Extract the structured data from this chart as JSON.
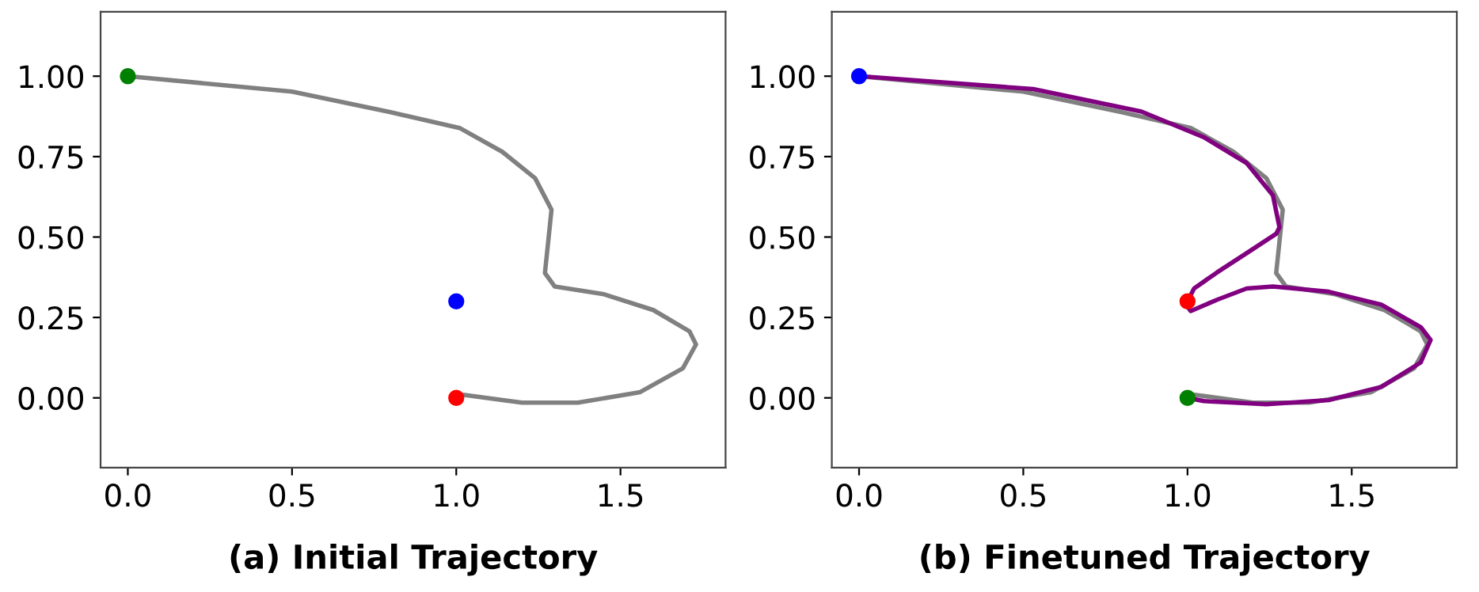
{
  "chart_data": [
    {
      "type": "line",
      "xlabel": "(a) Initial Trajectory",
      "xlim": [
        -0.083,
        1.82
      ],
      "ylim": [
        -0.217,
        1.2
      ],
      "xticks": [
        {
          "value": 0,
          "label": "0.0"
        },
        {
          "value": 0.5,
          "label": "0.5"
        },
        {
          "value": 1,
          "label": "1.0"
        },
        {
          "value": 1.5,
          "label": "1.5"
        }
      ],
      "yticks": [
        {
          "value": 0,
          "label": "0.00"
        },
        {
          "value": 0.25,
          "label": "0.25"
        },
        {
          "value": 0.5,
          "label": "0.50"
        },
        {
          "value": 0.75,
          "label": "0.75"
        },
        {
          "value": 1,
          "label": "1.00"
        }
      ],
      "series": [
        {
          "color": "#808080",
          "x": [
            0,
            0.5,
            0.8,
            1.01,
            1.14,
            1.24,
            1.29,
            1.28,
            1.27,
            1.3,
            1.45,
            1.6,
            1.71,
            1.73,
            1.69,
            1.56,
            1.37,
            1.2,
            1.02,
            1.0
          ],
          "values": [
            1.0,
            0.952,
            0.888,
            0.839,
            0.765,
            0.683,
            0.585,
            0.486,
            0.388,
            0.346,
            0.322,
            0.273,
            0.207,
            0.166,
            0.092,
            0.018,
            -0.015,
            -0.015,
            0.01,
            0
          ]
        },
        {
          "type": "scatter",
          "color": "#008000",
          "x": [
            0
          ],
          "values": [
            1.0
          ]
        },
        {
          "type": "scatter",
          "color": "#0000ff",
          "x": [
            1.0
          ],
          "values": [
            0.3
          ]
        },
        {
          "type": "scatter",
          "color": "#ff0000",
          "x": [
            1.0
          ],
          "values": [
            0
          ]
        }
      ]
    },
    {
      "type": "line",
      "xlabel": "(b) Finetuned Trajectory",
      "xlim": [
        -0.083,
        1.82
      ],
      "ylim": [
        -0.217,
        1.2
      ],
      "xticks": [
        {
          "value": 0,
          "label": "0.0"
        },
        {
          "value": 0.5,
          "label": "0.5"
        },
        {
          "value": 1,
          "label": "1.0"
        },
        {
          "value": 1.5,
          "label": "1.5"
        }
      ],
      "yticks": [
        {
          "value": 0,
          "label": "0.00"
        },
        {
          "value": 0.25,
          "label": "0.25"
        },
        {
          "value": 0.5,
          "label": "0.50"
        },
        {
          "value": 0.75,
          "label": "0.75"
        },
        {
          "value": 1,
          "label": "1.00"
        }
      ],
      "series": [
        {
          "color": "#808080",
          "x": [
            0,
            0.5,
            0.8,
            1.01,
            1.14,
            1.24,
            1.29,
            1.28,
            1.27,
            1.3,
            1.45,
            1.6,
            1.71,
            1.73,
            1.69,
            1.56,
            1.37,
            1.2,
            1.02,
            1.0
          ],
          "values": [
            1.0,
            0.952,
            0.888,
            0.839,
            0.765,
            0.683,
            0.585,
            0.486,
            0.388,
            0.346,
            0.322,
            0.273,
            0.207,
            0.166,
            0.092,
            0.018,
            -0.015,
            -0.015,
            0.01,
            0
          ]
        },
        {
          "color": "#800080",
          "x": [
            0,
            0.53,
            0.86,
            1.05,
            1.18,
            1.26,
            1.28,
            1.27,
            1.18,
            1.09,
            1.02,
            0.995,
            1.01,
            1.09,
            1.18,
            1.26,
            1.43,
            1.59,
            1.71,
            1.74,
            1.71,
            1.59,
            1.43,
            1.24,
            1.05,
            1.0
          ],
          "values": [
            1,
            0.96,
            0.89,
            0.81,
            0.73,
            0.63,
            0.53,
            0.51,
            0.45,
            0.39,
            0.34,
            0.29,
            0.27,
            0.305,
            0.34,
            0.346,
            0.33,
            0.29,
            0.22,
            0.18,
            0.11,
            0.034,
            -0.007,
            -0.02,
            -0.01,
            0
          ]
        },
        {
          "type": "scatter",
          "color": "#0000ff",
          "x": [
            0
          ],
          "values": [
            1.0
          ]
        },
        {
          "type": "scatter",
          "color": "#ff0000",
          "x": [
            1.0
          ],
          "values": [
            0.3
          ]
        },
        {
          "type": "scatter",
          "color": "#008000",
          "x": [
            1.0
          ],
          "values": [
            0
          ]
        }
      ]
    }
  ]
}
